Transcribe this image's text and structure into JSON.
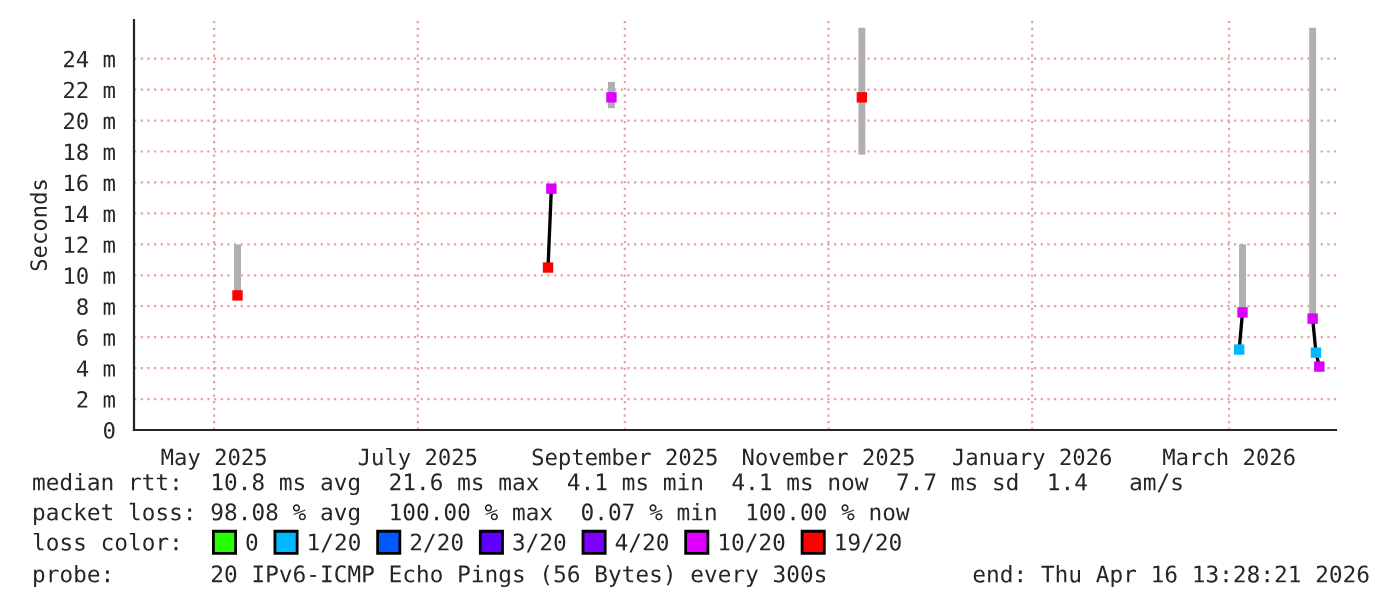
{
  "chart_data": {
    "type": "scatter",
    "ylabel": "Seconds",
    "legend_title": "loss color:",
    "legend": "bottom",
    "grid": true,
    "marker": "square",
    "xlim": [
      "2025-04-07",
      "2026-04-02"
    ],
    "xticks": [
      {
        "value": "2025-05-01",
        "label": "May 2025"
      },
      {
        "value": "2025-07-01",
        "label": "July 2025"
      },
      {
        "value": "2025-09-01",
        "label": "September 2025"
      },
      {
        "value": "2025-11-01",
        "label": "November 2025"
      },
      {
        "value": "2026-01-01",
        "label": "January 2026"
      },
      {
        "value": "2026-03-01",
        "label": "March 2026"
      }
    ],
    "ylim": [
      0,
      26.5
    ],
    "yticks": [
      0,
      {
        "value": 2,
        "label": "2 m"
      },
      {
        "value": 4,
        "label": "4 m"
      },
      {
        "value": 6,
        "label": "6 m"
      },
      {
        "value": 8,
        "label": "8 m"
      },
      {
        "value": 10,
        "label": "10 m"
      },
      {
        "value": 12,
        "label": "12 m"
      },
      {
        "value": 14,
        "label": "14 m"
      },
      {
        "value": 16,
        "label": "16 m"
      },
      {
        "value": 18,
        "label": "18 m"
      },
      {
        "value": 20,
        "label": "20 m"
      },
      {
        "value": 22,
        "label": "22 m"
      },
      {
        "value": 24,
        "label": "24 m"
      }
    ],
    "series": [
      {
        "type": "line",
        "marker": "none",
        "color": "#000000",
        "x": [
          "2025-08-09",
          "2025-08-10",
          "2025-08-11",
          "2026-03-04",
          "2026-03-05",
          "2026-03-06",
          "2026-03-26",
          "2026-03-27",
          "2026-03-28"
        ],
        "values": [
          10.5,
          15.6,
          null,
          5.2,
          7.6,
          null,
          7.2,
          5.0,
          4.1
        ]
      },
      {
        "name": "0",
        "color": "#26ff00"
      },
      {
        "name": "1/20",
        "color": "#00b8ff",
        "x": [
          "2026-03-04",
          "2026-03-27"
        ],
        "values": [
          5.2,
          5.0
        ]
      },
      {
        "name": "2/20",
        "color": "#0059ff"
      },
      {
        "name": "3/20",
        "color": "#5e00ff"
      },
      {
        "name": "4/20",
        "color": "#7e00ff"
      },
      {
        "name": "10/20",
        "color": "#dd00ff",
        "x": [
          "2025-08-10",
          "2025-08-28",
          "2026-03-05",
          "2026-03-26",
          "2026-03-28"
        ],
        "values": [
          15.6,
          21.5,
          7.6,
          7.2,
          4.1
        ],
        "errors": [
          null,
          [
            20.8,
            22.5
          ],
          [
            7.6,
            12.0
          ],
          [
            7.2,
            26.0
          ],
          null
        ]
      },
      {
        "name": "19/20",
        "color": "#ff0000",
        "x": [
          "2025-05-08",
          "2025-08-09",
          "2025-11-11"
        ],
        "values": [
          8.7,
          10.5,
          21.5
        ],
        "errors": [
          [
            8.7,
            12.0
          ],
          null,
          [
            17.8,
            26.0
          ]
        ]
      }
    ],
    "annotations": [
      "median rtt:  10.8 ms avg  21.6 ms max  4.1 ms min  4.1 ms now  7.7 ms sd  1.4   am/s",
      "packet loss: 98.08 % avg  100.00 % max  0.07 % min  100.00 % now",
      "probe:       20 IPv6-ICMP Echo Pings (56 Bytes) every 300s",
      "end: Thu Apr 16 13:28:21 2026"
    ]
  }
}
